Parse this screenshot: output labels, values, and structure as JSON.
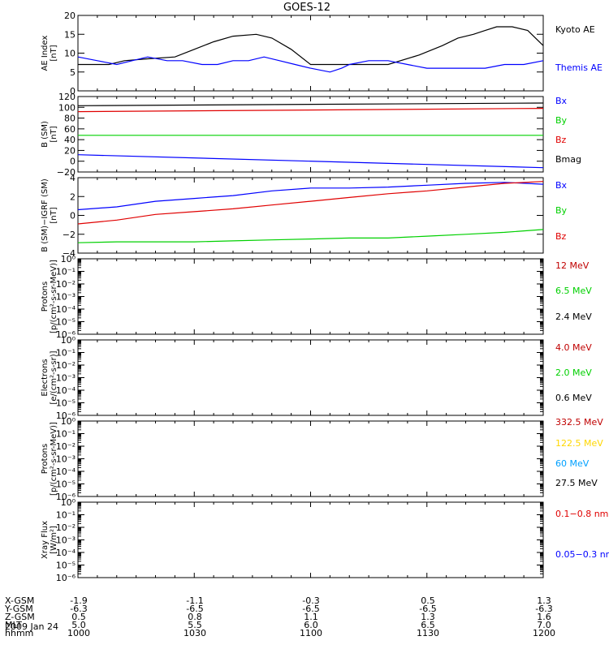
{
  "title": "GOES-12",
  "date_label": "2009 Jan 24",
  "ephemeris": {
    "row_labels": [
      "X-GSM",
      "Y-GSM",
      "Z-GSM",
      "MLT",
      "hhmm"
    ],
    "columns": [
      {
        "values": [
          "-1.9",
          "-6.3",
          "0.5",
          "5.0",
          "1000"
        ]
      },
      {
        "values": [
          "-1.1",
          "-6.5",
          "0.8",
          "5.5",
          "1030"
        ]
      },
      {
        "values": [
          "-0.3",
          "-6.5",
          "1.1",
          "6.0",
          "1100"
        ]
      },
      {
        "values": [
          "0.5",
          "-6.5",
          "1.3",
          "6.5",
          "1130"
        ]
      },
      {
        "values": [
          "1.3",
          "-6.3",
          "1.6",
          "7.0",
          "1200"
        ]
      }
    ]
  },
  "colors": {
    "black": "#000000",
    "blue": "#0000ff",
    "red": "#e00000",
    "green": "#00d000",
    "yellow": "#ffd700",
    "cyan": "#00a0ff",
    "darkred": "#c00000"
  },
  "chart_data": [
    {
      "type": "line",
      "ylabel": "AE Index\n[nT]",
      "ylim": [
        0,
        20
      ],
      "yticks": [
        "0",
        "5",
        "10",
        "15",
        "20"
      ],
      "x_range_minutes": [
        0,
        120
      ],
      "series": [
        {
          "name": "Kyoto AE",
          "color": "#000000",
          "x": [
            0,
            8,
            12,
            18,
            25,
            30,
            35,
            40,
            46,
            50,
            55,
            60,
            66,
            72,
            80,
            88,
            94,
            98,
            102,
            105,
            108,
            112,
            116,
            120
          ],
          "y": [
            7,
            7,
            8,
            8.5,
            9,
            11,
            13,
            14.5,
            15,
            14,
            11,
            7,
            7,
            7,
            7,
            9.5,
            12,
            14,
            15,
            16,
            17,
            17,
            16,
            12
          ]
        },
        {
          "name": "Themis AE",
          "color": "#0000ff",
          "x": [
            0,
            5,
            10,
            14,
            18,
            23,
            27,
            32,
            36,
            40,
            44,
            48,
            52,
            56,
            60,
            65,
            68,
            70,
            75,
            80,
            85,
            90,
            95,
            100,
            105,
            110,
            115,
            120
          ],
          "y": [
            9,
            8,
            7,
            8,
            9,
            8,
            8,
            7,
            7,
            8,
            8,
            9,
            8,
            7,
            6,
            5,
            6,
            7,
            8,
            8,
            7,
            6,
            6,
            6,
            6,
            7,
            7,
            8
          ]
        }
      ]
    },
    {
      "type": "line",
      "ylabel": "B (SM)\n[nT]",
      "ylim": [
        -20,
        120
      ],
      "yticks": [
        "−20",
        "0",
        "20",
        "40",
        "60",
        "80",
        "100",
        "120"
      ],
      "x_range_minutes": [
        0,
        120
      ],
      "series": [
        {
          "name": "Bx",
          "color": "#0000ff",
          "x": [
            0,
            120
          ],
          "y": [
            12,
            -12
          ]
        },
        {
          "name": "By",
          "color": "#00d000",
          "x": [
            0,
            120
          ],
          "y": [
            48,
            48
          ]
        },
        {
          "name": "Bz",
          "color": "#e00000",
          "x": [
            0,
            120
          ],
          "y": [
            92,
            98
          ]
        },
        {
          "name": "Bmag",
          "color": "#000000",
          "x": [
            0,
            120
          ],
          "y": [
            103,
            108
          ]
        }
      ]
    },
    {
      "type": "line",
      "ylabel": "B (SM)−IGRF (SM)\n[nT]",
      "ylim": [
        -4,
        4
      ],
      "yticks": [
        "−4",
        "−2",
        "0",
        "2",
        "4"
      ],
      "x_range_minutes": [
        0,
        120
      ],
      "series": [
        {
          "name": "Bx",
          "color": "#0000ff",
          "x": [
            0,
            10,
            20,
            30,
            40,
            50,
            60,
            70,
            80,
            90,
            100,
            110,
            120
          ],
          "y": [
            0.6,
            0.9,
            1.5,
            1.8,
            2.1,
            2.6,
            2.9,
            2.9,
            3.0,
            3.2,
            3.4,
            3.5,
            3.3
          ]
        },
        {
          "name": "By",
          "color": "#00d000",
          "x": [
            0,
            10,
            20,
            30,
            40,
            50,
            60,
            70,
            80,
            90,
            100,
            110,
            120
          ],
          "y": [
            -2.9,
            -2.8,
            -2.8,
            -2.8,
            -2.7,
            -2.6,
            -2.5,
            -2.4,
            -2.4,
            -2.2,
            -2.0,
            -1.8,
            -1.5
          ]
        },
        {
          "name": "Bz",
          "color": "#e00000",
          "x": [
            0,
            10,
            20,
            30,
            40,
            50,
            60,
            70,
            80,
            90,
            100,
            110,
            120
          ],
          "y": [
            -0.9,
            -0.5,
            0.1,
            0.4,
            0.7,
            1.1,
            1.5,
            1.9,
            2.3,
            2.6,
            3.0,
            3.4,
            3.6
          ]
        }
      ]
    },
    {
      "type": "line",
      "ylabel": "Protons\n[p/(cm²-s-sr-MeV)]",
      "yscale": "log",
      "ylim": [
        1e-06,
        1
      ],
      "yticks": [
        "10⁰",
        "10⁻¹",
        "10⁻²",
        "10⁻³",
        "10⁻⁴",
        "10⁻⁵",
        "10⁻⁶"
      ],
      "series": [
        {
          "name": "12 MeV",
          "color": "#c00000",
          "x": [],
          "y": []
        },
        {
          "name": "6.5 MeV",
          "color": "#00d000",
          "x": [],
          "y": []
        },
        {
          "name": "2.4 MeV",
          "color": "#000000",
          "x": [],
          "y": []
        }
      ]
    },
    {
      "type": "line",
      "ylabel": "Electrons\n[e/(cm²-s-sr)]",
      "yscale": "log",
      "ylim": [
        1e-06,
        1
      ],
      "yticks": [
        "10⁰",
        "10⁻¹",
        "10⁻²",
        "10⁻³",
        "10⁻⁴",
        "10⁻⁵",
        "10⁻⁶"
      ],
      "series": [
        {
          "name": "4.0 MeV",
          "color": "#c00000",
          "x": [],
          "y": []
        },
        {
          "name": "2.0 MeV",
          "color": "#00d000",
          "x": [],
          "y": []
        },
        {
          "name": "0.6 MeV",
          "color": "#000000",
          "x": [],
          "y": []
        }
      ]
    },
    {
      "type": "line",
      "ylabel": "Protons\n[p/(cm²-s-sr-MeV)]",
      "yscale": "log",
      "ylim": [
        1e-06,
        1
      ],
      "yticks": [
        "10⁰",
        "10⁻¹",
        "10⁻²",
        "10⁻³",
        "10⁻⁴",
        "10⁻⁵",
        "10⁻⁶"
      ],
      "series": [
        {
          "name": "332.5 MeV",
          "color": "#c00000",
          "x": [],
          "y": []
        },
        {
          "name": "122.5 MeV",
          "color": "#ffd700",
          "x": [],
          "y": []
        },
        {
          "name": "60 MeV",
          "color": "#00a0ff",
          "x": [],
          "y": []
        },
        {
          "name": "27.5 MeV",
          "color": "#000000",
          "x": [],
          "y": []
        }
      ]
    },
    {
      "type": "line",
      "ylabel": "Xray Flux\n[W/m²]",
      "yscale": "log",
      "ylim": [
        1e-06,
        1
      ],
      "yticks": [
        "10⁰",
        "10⁻¹",
        "10⁻²",
        "10⁻³",
        "10⁻⁴",
        "10⁻⁵",
        "10⁻⁶"
      ],
      "series": [
        {
          "name": "0.1−0.8 nm",
          "color": "#e00000",
          "x": [],
          "y": []
        },
        {
          "name": "0.05−0.3 nm",
          "color": "#0000ff",
          "x": [],
          "y": []
        }
      ]
    }
  ]
}
